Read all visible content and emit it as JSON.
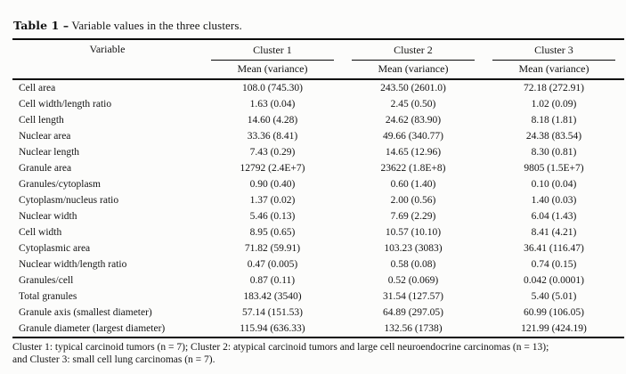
{
  "colors": {
    "background": "#fcfcfb",
    "text": "#141414",
    "rule": "#0a0a0a"
  },
  "caption": {
    "label": "Table 1 –",
    "text": "Variable values in the three clusters."
  },
  "table": {
    "variable_header": "Variable",
    "cluster_headers": [
      "Cluster 1",
      "Cluster 2",
      "Cluster 3"
    ],
    "subheader": "Mean (variance)",
    "rows": [
      [
        "Cell area",
        "108.0 (745.30)",
        "243.50 (2601.0)",
        "72.18 (272.91)"
      ],
      [
        "Cell width/length ratio",
        "1.63 (0.04)",
        "2.45 (0.50)",
        "1.02 (0.09)"
      ],
      [
        "Cell length",
        "14.60 (4.28)",
        "24.62 (83.90)",
        "8.18 (1.81)"
      ],
      [
        "Nuclear area",
        "33.36 (8.41)",
        "49.66 (340.77)",
        "24.38 (83.54)"
      ],
      [
        "Nuclear length",
        "7.43 (0.29)",
        "14.65 (12.96)",
        "8.30 (0.81)"
      ],
      [
        "Granule area",
        "12792 (2.4E+7)",
        "23622 (1.8E+8)",
        "9805 (1.5E+7)"
      ],
      [
        "Granules/cytoplasm",
        "0.90 (0.40)",
        "0.60 (1.40)",
        "0.10 (0.04)"
      ],
      [
        "Cytoplasm/nucleus ratio",
        "1.37 (0.02)",
        "2.00 (0.56)",
        "1.40 (0.03)"
      ],
      [
        "Nuclear width",
        "5.46 (0.13)",
        "7.69 (2.29)",
        "6.04 (1.43)"
      ],
      [
        "Cell width",
        "8.95 (0.65)",
        "10.57 (10.10)",
        "8.41 (4.21)"
      ],
      [
        "Cytoplasmic area",
        "71.82 (59.91)",
        "103.23 (3083)",
        "36.41 (116.47)"
      ],
      [
        "Nuclear width/length ratio",
        "0.47 (0.005)",
        "0.58 (0.08)",
        "0.74 (0.15)"
      ],
      [
        "Granules/cell",
        "0.87 (0.11)",
        "0.52 (0.069)",
        "0.042 (0.0001)"
      ],
      [
        "Total granules",
        "183.42 (3540)",
        "31.54 (127.57)",
        "5.40 (5.01)"
      ],
      [
        "Granule axis (smallest diameter)",
        "57.14 (151.53)",
        "64.89 (297.05)",
        "60.99 (106.05)"
      ],
      [
        "Granule diameter (largest diameter)",
        "115.94 (636.33)",
        "132.56 (1738)",
        "121.99 (424.19)"
      ]
    ]
  },
  "footnote_lines": [
    "Cluster 1: typical carcinoid tumors (n = 7); Cluster 2: atypical carcinoid tumors and large cell neuroendocrine carcinomas (n = 13);",
    "and Cluster 3: small cell lung carcinomas (n = 7)."
  ]
}
